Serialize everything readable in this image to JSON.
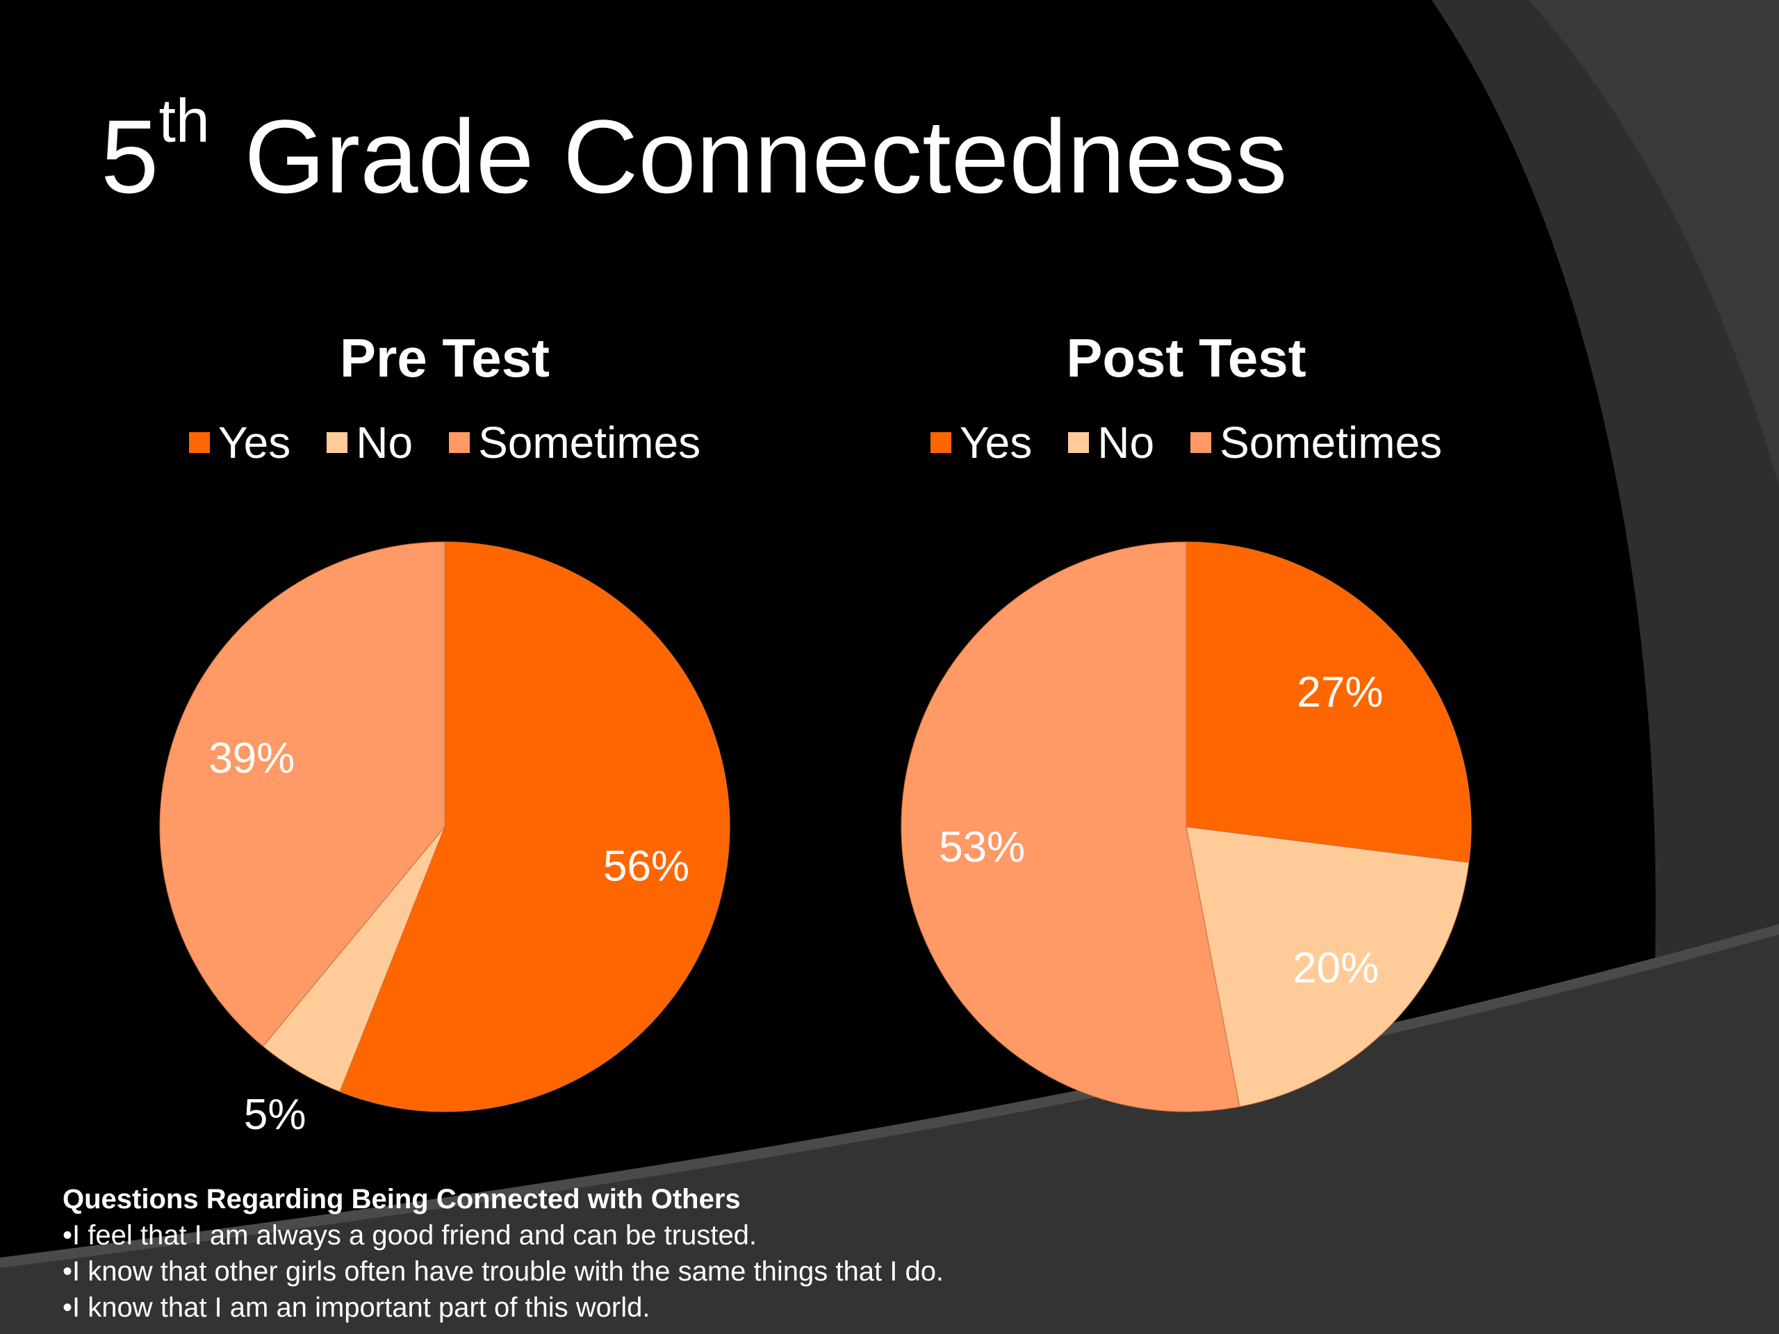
{
  "slide": {
    "title_prefix": "5",
    "title_superscript": "th",
    "title_main": " Grade Connectedness"
  },
  "colors": {
    "background": "#000000",
    "yes": "#FF6600",
    "no": "#FFCC99",
    "sometimes": "#FF9966"
  },
  "chart_data": [
    {
      "type": "pie",
      "title": "Pre Test",
      "legend_position": "top",
      "categories": [
        "Yes",
        "No",
        "Sometimes"
      ],
      "values": [
        56,
        5,
        39
      ],
      "data_labels": [
        "56%",
        "5%",
        "39%"
      ]
    },
    {
      "type": "pie",
      "title": "Post Test",
      "legend_position": "top",
      "categories": [
        "Yes",
        "No",
        "Sometimes"
      ],
      "values": [
        27,
        20,
        53
      ],
      "data_labels": [
        "27%",
        "20%",
        "53%"
      ]
    }
  ],
  "questions": {
    "heading": "Questions Regarding Being Connected with Others",
    "items": [
      "•I feel that I am always a good friend and can be trusted.",
      "•I know that other girls often have trouble with the same things that I do.",
      "•I know that I am an important part of this world."
    ]
  }
}
